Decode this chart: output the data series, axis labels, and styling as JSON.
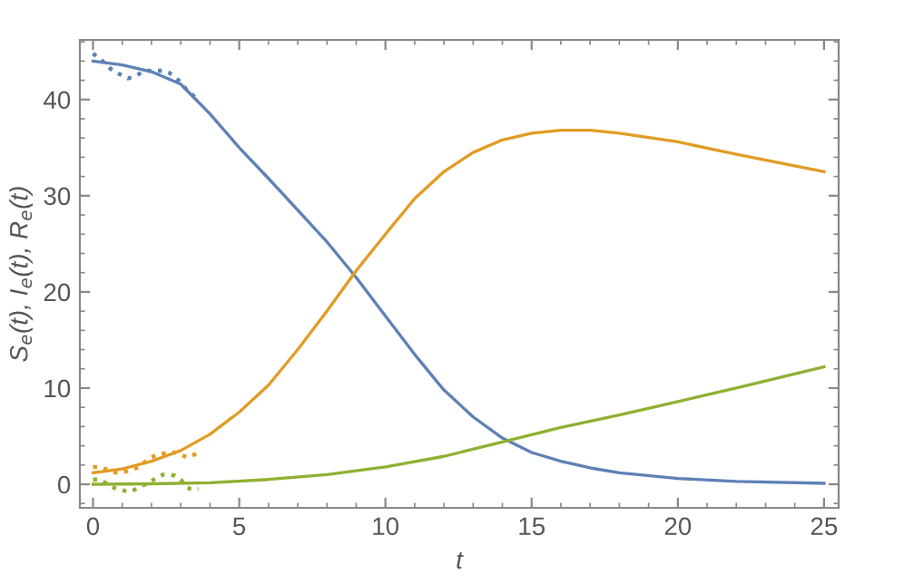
{
  "chart_data": {
    "type": "line",
    "xlabel": "t",
    "ylabel": "S$_{e}$(t), I$_{e}$(t), R$_{e}$(t)",
    "xlim": [
      -0.45,
      25.5
    ],
    "ylim": [
      -2.45,
      46.2
    ],
    "xticks": [
      0,
      5,
      10,
      15,
      20,
      25
    ],
    "yticks": [
      0,
      10,
      20,
      30,
      40
    ],
    "grid": false,
    "legend": false,
    "marker": "none",
    "series": [
      {
        "color": "#5e81b5",
        "line_style": "solid",
        "x": [
          0,
          1,
          2,
          3,
          4,
          5,
          6,
          7,
          8,
          9,
          10,
          11,
          12,
          13,
          14,
          15,
          16,
          17,
          18,
          20,
          22,
          25
        ],
        "values": [
          44,
          43.6,
          42.9,
          41.6,
          38.5,
          35,
          31.8,
          28.5,
          25.2,
          21.5,
          17.5,
          13.5,
          9.8,
          7,
          4.8,
          3.3,
          2.4,
          1.7,
          1.2,
          0.6,
          0.3,
          0.1
        ]
      },
      {
        "color": "#e19c24",
        "line_style": "solid",
        "x": [
          0,
          1,
          2,
          3,
          4,
          5,
          6,
          7,
          8,
          9,
          10,
          11,
          12,
          13,
          14,
          15,
          16,
          17,
          18,
          20,
          22,
          25
        ],
        "values": [
          1.2,
          1.6,
          2.4,
          3.5,
          5.2,
          7.5,
          10.3,
          14,
          18,
          22.2,
          26,
          29.7,
          32.5,
          34.5,
          35.8,
          36.5,
          36.8,
          36.8,
          36.5,
          35.6,
          34.3,
          32.5
        ]
      },
      {
        "color": "#8fb032",
        "line_style": "solid",
        "x": [
          0,
          2,
          4,
          6,
          8,
          10,
          12,
          14,
          16,
          18,
          20,
          22,
          25
        ],
        "values": [
          0,
          0.05,
          0.15,
          0.5,
          1.0,
          1.8,
          2.9,
          4.4,
          5.9,
          7.2,
          8.6,
          10,
          12.2
        ]
      },
      {
        "color": "#5e81b5",
        "line_style": "dotted",
        "x": [
          0,
          0.2,
          0.4,
          0.6,
          0.8,
          1,
          1.2,
          1.4,
          1.6,
          1.8,
          2,
          2.2,
          2.4,
          2.6,
          2.8,
          3,
          3.2,
          3.4,
          3.6
        ],
        "values": [
          44.8,
          44.3,
          43.8,
          43.2,
          42.8,
          42.5,
          42.2,
          42.4,
          42.7,
          43,
          43,
          43,
          43,
          42.8,
          42.3,
          41.8,
          41,
          40.5,
          39.8
        ]
      },
      {
        "color": "#e19c24",
        "line_style": "dotted",
        "x": [
          0,
          0.2,
          0.4,
          0.6,
          0.8,
          1,
          1.2,
          1.4,
          1.6,
          1.8,
          2,
          2.2,
          2.4,
          2.6,
          2.8,
          3,
          3.2,
          3.4,
          3.6
        ],
        "values": [
          1.8,
          1.8,
          1.6,
          1.4,
          1.2,
          1.2,
          1.4,
          1.6,
          1.8,
          2.4,
          2.8,
          3.1,
          3.2,
          3.3,
          3.3,
          3.1,
          2.8,
          3,
          3.3
        ]
      },
      {
        "color": "#8fb032",
        "line_style": "dotted",
        "x": [
          0,
          0.2,
          0.4,
          0.6,
          0.8,
          1,
          1.2,
          1.4,
          1.6,
          1.8,
          2,
          2.2,
          2.4,
          2.6,
          2.8,
          3,
          3.2,
          3.4,
          3.6
        ],
        "values": [
          0.5,
          0.5,
          0.2,
          -0.2,
          -0.5,
          -0.6,
          -0.8,
          -0.6,
          -0.3,
          0,
          0.3,
          0.8,
          1,
          1,
          0.9,
          0.5,
          -0.3,
          -0.6,
          -0.5
        ]
      }
    ]
  }
}
